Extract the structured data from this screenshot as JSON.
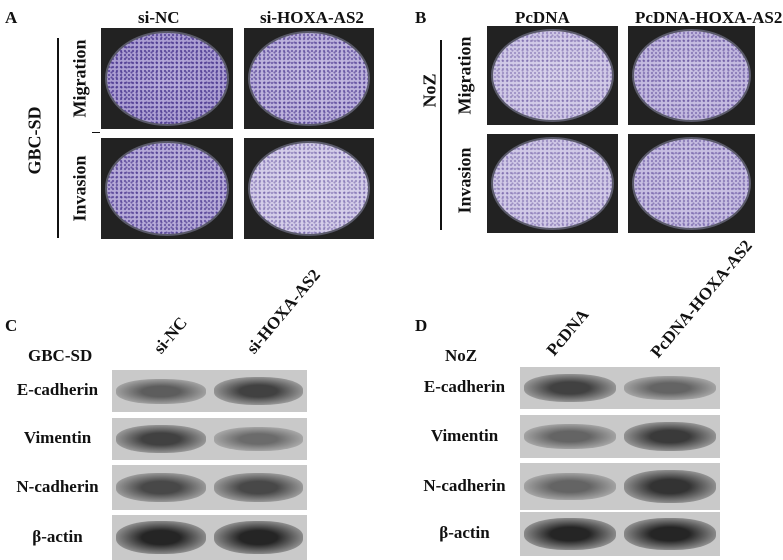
{
  "panelA": {
    "letter": "A",
    "cols": [
      "si-NC",
      "si-HOXA-AS2"
    ],
    "cell_line": "GBC-SD",
    "rows": [
      "Migration",
      "Invasion"
    ],
    "densities": [
      [
        0.85,
        0.6
      ],
      [
        0.7,
        0.25
      ]
    ]
  },
  "panelB": {
    "letter": "B",
    "cols": [
      "PcDNA",
      "PcDNA-HOXA-AS2"
    ],
    "cell_line": "NoZ",
    "rows": [
      "Migration",
      "Invasion"
    ],
    "densities": [
      [
        0.3,
        0.5
      ],
      [
        0.3,
        0.45
      ]
    ]
  },
  "panelC": {
    "letter": "C",
    "cell_line": "GBC-SD",
    "cols": [
      "si-NC",
      "si-HOXA-AS2"
    ],
    "proteins": [
      "E-cadherin",
      "Vimentin",
      "N-cadherin",
      "β-actin"
    ],
    "band_levels": [
      [
        0.55,
        0.75
      ],
      [
        0.75,
        0.45
      ],
      [
        0.7,
        0.7
      ],
      [
        0.95,
        0.95
      ]
    ]
  },
  "panelD": {
    "letter": "D",
    "cell_line": "NoZ",
    "cols": [
      "PcDNA",
      "PcDNA-HOXA-AS2"
    ],
    "proteins": [
      "E-cadherin",
      "Vimentin",
      "N-cadherin",
      "β-actin"
    ],
    "band_levels": [
      [
        0.75,
        0.5
      ],
      [
        0.5,
        0.8
      ],
      [
        0.5,
        0.85
      ],
      [
        0.95,
        0.95
      ]
    ]
  }
}
